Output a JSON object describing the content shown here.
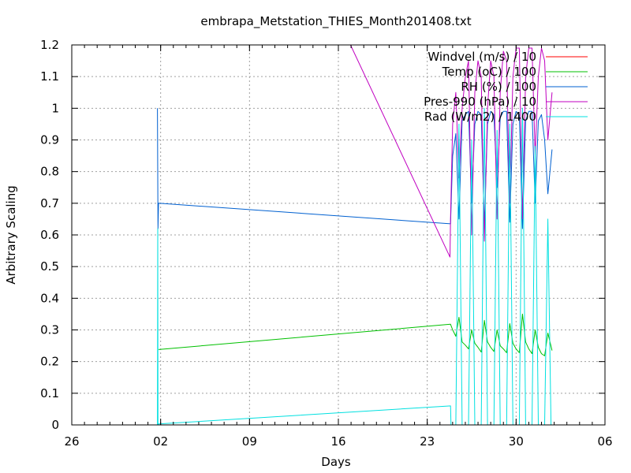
{
  "chart_data": {
    "type": "line",
    "title": "embrapa_Metstation_THIES_Month201408.txt",
    "xlabel": "Days",
    "ylabel": "Arbitrary Scaling",
    "x_axis": "date",
    "xlim": [
      "2014-07-26",
      "2014-09-06"
    ],
    "ylim": [
      0,
      1.2
    ],
    "grid": true,
    "legend_position": "top-right",
    "x_ticks": [
      {
        "date": "2014-07-26",
        "label": "26"
      },
      {
        "date": "2014-08-02",
        "label": "02"
      },
      {
        "date": "2014-08-09",
        "label": "09"
      },
      {
        "date": "2014-08-16",
        "label": "16"
      },
      {
        "date": "2014-08-23",
        "label": "23"
      },
      {
        "date": "2014-08-30",
        "label": "30"
      },
      {
        "date": "2014-09-06",
        "label": "06"
      }
    ],
    "y_ticks": [
      {
        "value": 0,
        "label": "0"
      },
      {
        "value": 0.1,
        "label": "0.1"
      },
      {
        "value": 0.2,
        "label": "0.2"
      },
      {
        "value": 0.3,
        "label": "0.3"
      },
      {
        "value": 0.4,
        "label": "0.4"
      },
      {
        "value": 0.5,
        "label": "0.5"
      },
      {
        "value": 0.6,
        "label": "0.6"
      },
      {
        "value": 0.7,
        "label": "0.7"
      },
      {
        "value": 0.8,
        "label": "0.8"
      },
      {
        "value": 0.9,
        "label": "0.9"
      },
      {
        "value": 1,
        "label": "1"
      },
      {
        "value": 1.1,
        "label": "1.1"
      },
      {
        "value": 1.2,
        "label": "1.2"
      }
    ],
    "series": [
      {
        "name": "Windvel (m/s) / 10",
        "color": "#ff0000",
        "points": []
      },
      {
        "name": "Temp (oC) / 100",
        "color": "#00c000",
        "points": [
          [
            "2014-08-01T20:00",
            0.238
          ],
          [
            "2014-08-24T20:00",
            0.318
          ],
          [
            "2014-08-25T00:00",
            0.3
          ],
          [
            "2014-08-25T06:00",
            0.28
          ],
          [
            "2014-08-25T12:00",
            0.34
          ],
          [
            "2014-08-25T18:00",
            0.262
          ],
          [
            "2014-08-26T00:00",
            0.252
          ],
          [
            "2014-08-26T06:00",
            0.24
          ],
          [
            "2014-08-26T12:00",
            0.3
          ],
          [
            "2014-08-26T18:00",
            0.258
          ],
          [
            "2014-08-27T00:00",
            0.245
          ],
          [
            "2014-08-27T06:00",
            0.23
          ],
          [
            "2014-08-27T12:00",
            0.33
          ],
          [
            "2014-08-27T18:00",
            0.262
          ],
          [
            "2014-08-28T00:00",
            0.245
          ],
          [
            "2014-08-28T06:00",
            0.232
          ],
          [
            "2014-08-28T12:00",
            0.3
          ],
          [
            "2014-08-28T18:00",
            0.25
          ],
          [
            "2014-08-29T00:00",
            0.24
          ],
          [
            "2014-08-29T06:00",
            0.228
          ],
          [
            "2014-08-29T12:00",
            0.32
          ],
          [
            "2014-08-29T18:00",
            0.258
          ],
          [
            "2014-08-30T00:00",
            0.24
          ],
          [
            "2014-08-30T06:00",
            0.228
          ],
          [
            "2014-08-30T12:00",
            0.35
          ],
          [
            "2014-08-30T18:00",
            0.262
          ],
          [
            "2014-08-31T00:00",
            0.24
          ],
          [
            "2014-08-31T06:00",
            0.225
          ],
          [
            "2014-08-31T12:00",
            0.3
          ],
          [
            "2014-08-31T18:00",
            0.245
          ],
          [
            "2014-09-01T00:00",
            0.225
          ],
          [
            "2014-09-01T06:00",
            0.218
          ],
          [
            "2014-09-01T12:00",
            0.29
          ],
          [
            "2014-09-01T20:00",
            0.235
          ]
        ]
      },
      {
        "name": "RH (%) / 100",
        "color": "#0060d0",
        "points": [
          [
            "2014-08-01T18:00",
            1.0
          ],
          [
            "2014-08-01T19:00",
            0.62
          ],
          [
            "2014-08-01T20:00",
            0.7
          ],
          [
            "2014-08-24T20:00",
            0.635
          ],
          [
            "2014-08-25T00:00",
            0.85
          ],
          [
            "2014-08-25T06:00",
            0.92
          ],
          [
            "2014-08-25T12:00",
            0.65
          ],
          [
            "2014-08-25T18:00",
            0.96
          ],
          [
            "2014-08-26T00:00",
            0.98
          ],
          [
            "2014-08-26T06:00",
            0.99
          ],
          [
            "2014-08-26T12:00",
            0.7
          ],
          [
            "2014-08-26T18:00",
            0.95
          ],
          [
            "2014-08-27T00:00",
            0.99
          ],
          [
            "2014-08-27T06:00",
            0.98
          ],
          [
            "2014-08-27T12:00",
            0.63
          ],
          [
            "2014-08-27T18:00",
            0.95
          ],
          [
            "2014-08-28T00:00",
            0.99
          ],
          [
            "2014-08-28T06:00",
            0.98
          ],
          [
            "2014-08-28T12:00",
            0.75
          ],
          [
            "2014-08-28T18:00",
            0.97
          ],
          [
            "2014-08-29T00:00",
            0.99
          ],
          [
            "2014-08-29T06:00",
            0.99
          ],
          [
            "2014-08-29T12:00",
            0.64
          ],
          [
            "2014-08-29T18:00",
            0.95
          ],
          [
            "2014-08-30T00:00",
            0.99
          ],
          [
            "2014-08-30T06:00",
            0.98
          ],
          [
            "2014-08-30T12:00",
            0.62
          ],
          [
            "2014-08-30T18:00",
            0.96
          ],
          [
            "2014-08-31T00:00",
            0.99
          ],
          [
            "2014-08-31T06:00",
            0.99
          ],
          [
            "2014-08-31T12:00",
            0.7
          ],
          [
            "2014-08-31T18:00",
            0.96
          ],
          [
            "2014-09-01T00:00",
            0.98
          ],
          [
            "2014-09-01T06:00",
            0.9
          ],
          [
            "2014-09-01T12:00",
            0.73
          ],
          [
            "2014-09-01T20:00",
            0.87
          ]
        ]
      },
      {
        "name": "Pres-990 (hPa) / 10",
        "color": "#c000c0",
        "points": [
          [
            "2014-08-16T23:00",
            1.2
          ],
          [
            "2014-08-24T19:00",
            0.53
          ],
          [
            "2014-08-24T20:00",
            0.65
          ],
          [
            "2014-08-25T00:00",
            0.95
          ],
          [
            "2014-08-25T06:00",
            1.05
          ],
          [
            "2014-08-25T12:00",
            0.78
          ],
          [
            "2014-08-25T18:00",
            1.0
          ],
          [
            "2014-08-26T00:00",
            1.1
          ],
          [
            "2014-08-26T06:00",
            1.15
          ],
          [
            "2014-08-26T12:00",
            0.6
          ],
          [
            "2014-08-26T18:00",
            1.05
          ],
          [
            "2014-08-27T00:00",
            1.15
          ],
          [
            "2014-08-27T06:00",
            1.1
          ],
          [
            "2014-08-27T12:00",
            0.58
          ],
          [
            "2014-08-27T18:00",
            1.0
          ],
          [
            "2014-08-28T00:00",
            1.15
          ],
          [
            "2014-08-28T06:00",
            1.1
          ],
          [
            "2014-08-28T12:00",
            0.65
          ],
          [
            "2014-08-28T18:00",
            1.05
          ],
          [
            "2014-08-29T00:00",
            1.18
          ],
          [
            "2014-08-29T06:00",
            1.15
          ],
          [
            "2014-08-29T12:00",
            0.7
          ],
          [
            "2014-08-29T18:00",
            1.1
          ],
          [
            "2014-08-30T00:00",
            1.19
          ],
          [
            "2014-08-30T06:00",
            1.19
          ],
          [
            "2014-08-30T12:00",
            0.65
          ],
          [
            "2014-08-30T18:00",
            1.1
          ],
          [
            "2014-08-31T00:00",
            1.19
          ],
          [
            "2014-08-31T06:00",
            1.19
          ],
          [
            "2014-08-31T12:00",
            0.85
          ],
          [
            "2014-08-31T18:00",
            1.1
          ],
          [
            "2014-09-01T00:00",
            1.19
          ],
          [
            "2014-09-01T06:00",
            1.15
          ],
          [
            "2014-09-01T12:00",
            0.9
          ],
          [
            "2014-09-01T20:00",
            1.05
          ]
        ]
      },
      {
        "name": "Rad (W/m2) / 1400",
        "color": "#00e0e0",
        "points": [
          [
            "2014-08-01T18:00",
            0.0
          ],
          [
            "2014-08-01T18:30",
            0.62
          ],
          [
            "2014-08-01T19:00",
            0.0
          ],
          [
            "2014-08-01T20:00",
            0.003
          ],
          [
            "2014-08-24T20:00",
            0.06
          ],
          [
            "2014-08-24T21:00",
            0.0
          ],
          [
            "2014-08-25T06:00",
            0.0
          ],
          [
            "2014-08-25T12:00",
            0.95
          ],
          [
            "2014-08-25T18:00",
            0.0
          ],
          [
            "2014-08-26T06:00",
            0.0
          ],
          [
            "2014-08-26T12:00",
            0.9
          ],
          [
            "2014-08-26T18:00",
            0.0
          ],
          [
            "2014-08-27T06:00",
            0.0
          ],
          [
            "2014-08-27T12:00",
            1.0
          ],
          [
            "2014-08-27T18:00",
            0.0
          ],
          [
            "2014-08-28T06:00",
            0.0
          ],
          [
            "2014-08-28T12:00",
            0.93
          ],
          [
            "2014-08-28T18:00",
            0.0
          ],
          [
            "2014-08-29T06:00",
            0.0
          ],
          [
            "2014-08-29T12:00",
            0.95
          ],
          [
            "2014-08-29T18:00",
            0.0
          ],
          [
            "2014-08-30T06:00",
            0.0
          ],
          [
            "2014-08-30T12:00",
            1.0
          ],
          [
            "2014-08-30T18:00",
            0.0
          ],
          [
            "2014-08-31T06:00",
            0.0
          ],
          [
            "2014-08-31T12:00",
            0.88
          ],
          [
            "2014-08-31T18:00",
            0.0
          ],
          [
            "2014-09-01T06:00",
            0.0
          ],
          [
            "2014-09-01T12:00",
            0.65
          ],
          [
            "2014-09-01T18:00",
            0.0
          ],
          [
            "2014-09-01T20:00",
            0.0
          ]
        ]
      }
    ]
  }
}
